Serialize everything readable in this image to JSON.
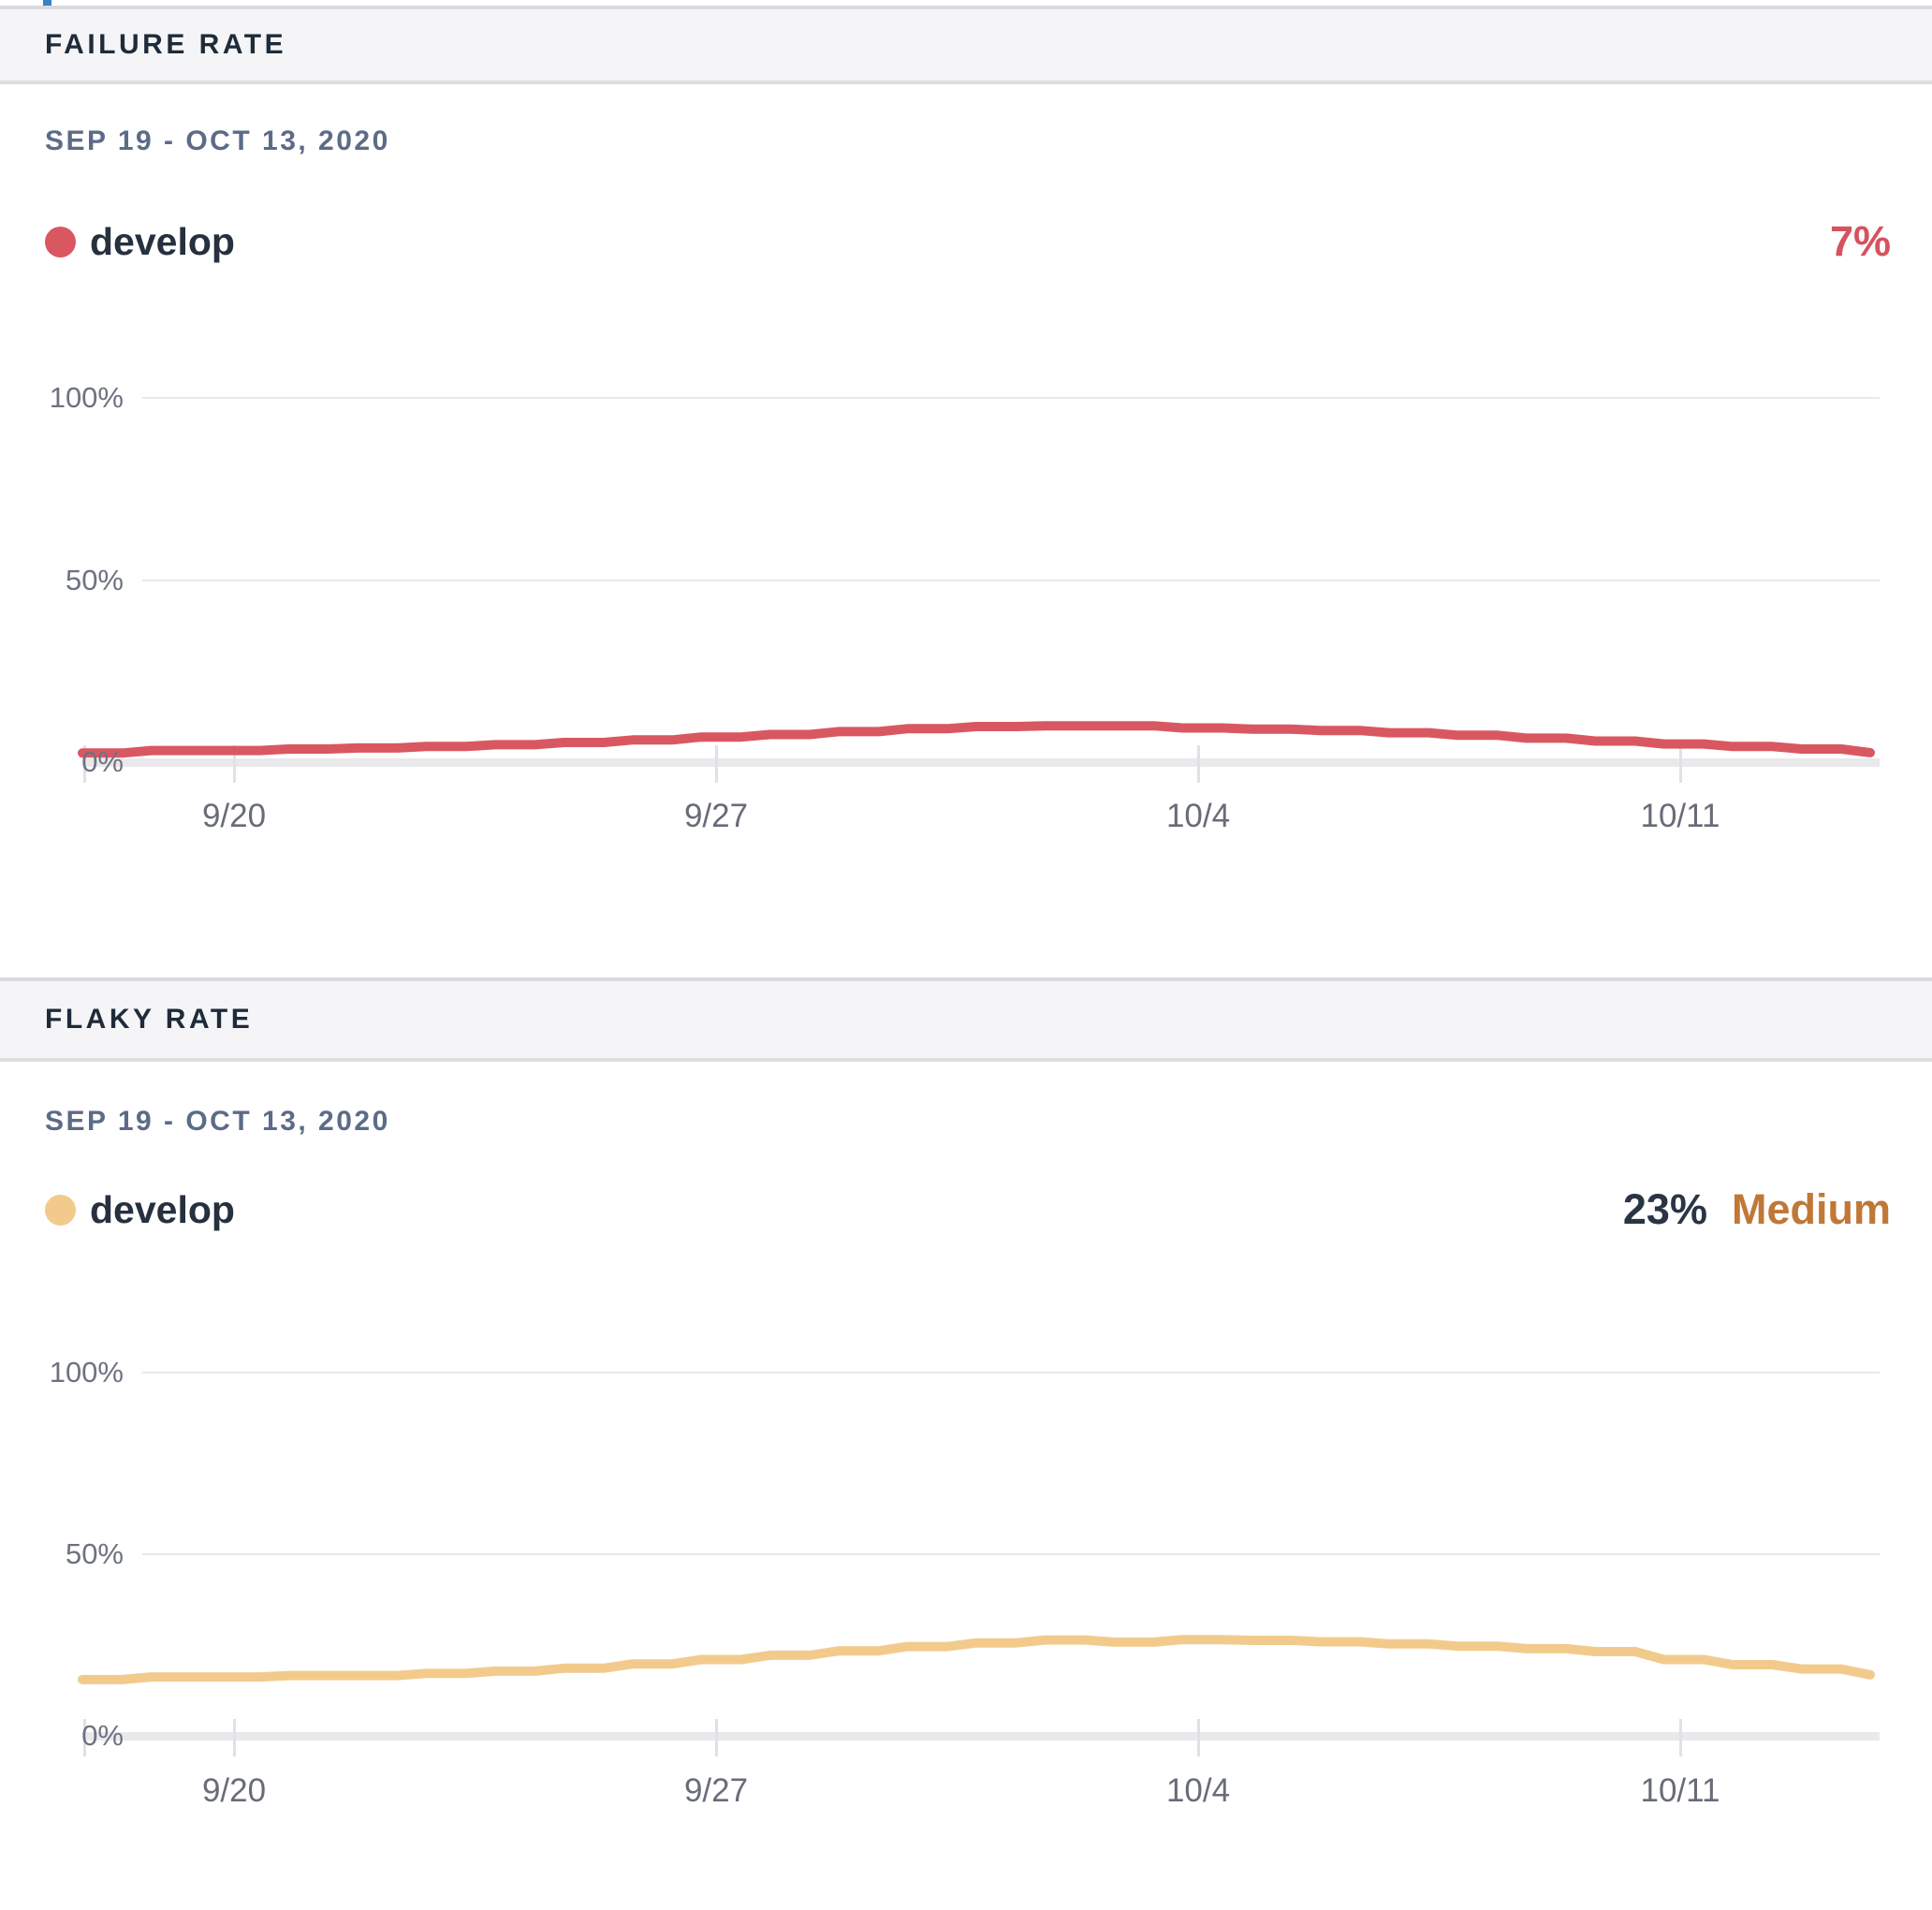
{
  "page": {
    "top_edge_artifact": {
      "color": "#3b7fc6"
    }
  },
  "panels": [
    {
      "header": {
        "title": "FAILURE RATE"
      },
      "date_range": "SEP 19 - OCT 13, 2020",
      "legend": {
        "label": "develop",
        "color": "#d95761"
      },
      "headline": {
        "value": "7%",
        "value_color": "#d6525f"
      },
      "chart_data": {
        "type": "line",
        "title": "Failure Rate",
        "unit": "%",
        "date_range": "Sep 19 - Oct 13, 2020",
        "xticks": [
          "9/20",
          "9/27",
          "10/4",
          "10/11"
        ],
        "yticks": [
          "0%",
          "50%",
          "100%"
        ],
        "ylim": [
          0,
          100
        ],
        "grid": "horizontal",
        "legend_position": "top-left",
        "series": [
          {
            "name": "develop",
            "color": "#d95761",
            "values": [
              2.5,
              3.2,
              3.2,
              3.6,
              3.9,
              4.3,
              4.8,
              5.4,
              6.1,
              6.9,
              7.6,
              8.4,
              9.2,
              9.8,
              10.0,
              10.0,
              9.4,
              9.1,
              8.7,
              8.1,
              7.4,
              6.6,
              5.8,
              5.0,
              4.3,
              3.6,
              2.6
            ]
          }
        ]
      }
    },
    {
      "header": {
        "title": "FLAKY RATE"
      },
      "date_range": "SEP 19 - OCT 13, 2020",
      "legend": {
        "label": "develop",
        "color": "#f2cb8c"
      },
      "headline": {
        "value": "23%",
        "value_color": "#2a3544",
        "badge": "Medium",
        "badge_color": "#c07837"
      },
      "chart_data": {
        "type": "line",
        "title": "Flaky Rate",
        "unit": "%",
        "date_range": "Sep 19 - Oct 13, 2020",
        "xticks": [
          "9/20",
          "9/27",
          "10/4",
          "10/11"
        ],
        "yticks": [
          "0%",
          "50%",
          "100%"
        ],
        "ylim": [
          0,
          100
        ],
        "grid": "horizontal",
        "legend_position": "top-left",
        "series": [
          {
            "name": "develop",
            "color": "#f2cb8c",
            "values": [
              15.5,
              16.2,
              16.2,
              16.6,
              16.6,
              17.2,
              17.8,
              18.6,
              19.8,
              21.0,
              22.2,
              23.4,
              24.6,
              25.6,
              26.4,
              25.8,
              26.5,
              26.3,
              25.9,
              25.3,
              24.7,
              24.0,
              23.2,
              21.0,
              19.6,
              18.4,
              16.8
            ]
          }
        ]
      }
    }
  ]
}
